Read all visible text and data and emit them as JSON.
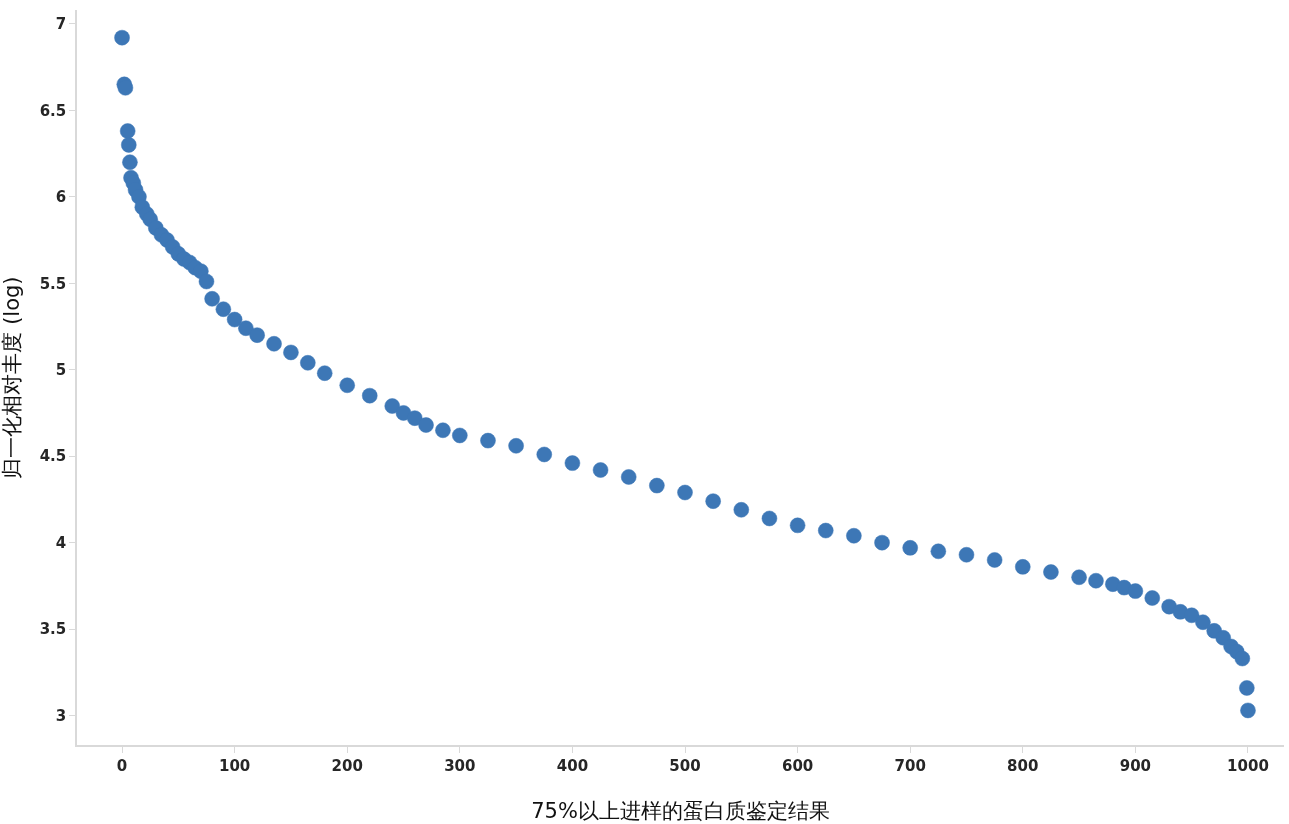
{
  "chart_data": {
    "type": "scatter",
    "xlabel": "75%以上进样的蛋白质鉴定结果",
    "ylabel": "归一化相对丰度 (log)",
    "x": [
      0,
      2,
      3,
      5,
      6,
      7,
      8,
      10,
      12,
      15,
      18,
      22,
      25,
      30,
      35,
      40,
      45,
      50,
      55,
      60,
      65,
      70,
      75,
      80,
      90,
      100,
      110,
      120,
      135,
      150,
      165,
      180,
      200,
      220,
      240,
      250,
      260,
      270,
      285,
      300,
      325,
      350,
      375,
      400,
      425,
      450,
      475,
      500,
      525,
      550,
      575,
      600,
      625,
      650,
      675,
      700,
      725,
      750,
      775,
      800,
      825,
      850,
      865,
      880,
      890,
      900,
      915,
      930,
      940,
      950,
      960,
      970,
      978,
      985,
      990,
      995,
      999,
      1000
    ],
    "series": [
      {
        "color": "#3d77b6",
        "values": [
          6.92,
          6.65,
          6.63,
          6.38,
          6.3,
          6.2,
          6.11,
          6.08,
          6.04,
          6.0,
          5.94,
          5.9,
          5.87,
          5.82,
          5.78,
          5.75,
          5.71,
          5.67,
          5.64,
          5.62,
          5.59,
          5.57,
          5.51,
          5.41,
          5.35,
          5.29,
          5.24,
          5.2,
          5.15,
          5.1,
          5.04,
          4.98,
          4.91,
          4.85,
          4.79,
          4.75,
          4.72,
          4.68,
          4.65,
          4.62,
          4.59,
          4.56,
          4.51,
          4.46,
          4.42,
          4.38,
          4.33,
          4.29,
          4.24,
          4.19,
          4.14,
          4.1,
          4.07,
          4.04,
          4.0,
          3.97,
          3.95,
          3.93,
          3.9,
          3.86,
          3.83,
          3.8,
          3.78,
          3.76,
          3.74,
          3.72,
          3.68,
          3.63,
          3.6,
          3.58,
          3.54,
          3.49,
          3.45,
          3.4,
          3.37,
          3.33,
          3.16,
          3.03
        ]
      }
    ],
    "xlim": [
      -40,
      1032
    ],
    "ylim": [
      2.83,
      7.08
    ],
    "xticks": [
      0,
      100,
      200,
      300,
      400,
      500,
      600,
      700,
      800,
      900,
      1000
    ],
    "yticks": [
      3,
      3.5,
      4,
      4.5,
      5,
      5.5,
      6,
      6.5,
      7
    ],
    "legend": false
  }
}
